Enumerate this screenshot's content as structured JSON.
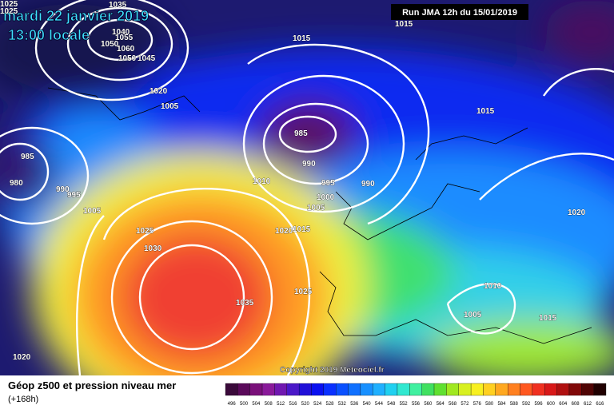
{
  "header": {
    "title": "mardi 22 janvier 2019",
    "subtitle": "13:00 locale",
    "run": "Run JMA 12h du 15/01/2019"
  },
  "copyright": "Copyright 2019 Meteociel.fr",
  "isobar_labels": [
    "1025",
    "1025",
    "1035",
    "1040",
    "1055",
    "1050",
    "1060",
    "1050",
    "1045",
    "1020",
    "1005",
    "1015",
    "1015",
    "985",
    "990",
    "995",
    "990",
    "1000",
    "1005",
    "1010",
    "1020",
    "1015",
    "1015",
    "1020",
    "985",
    "980",
    "990",
    "995",
    "1005",
    "1025",
    "1030",
    "1035",
    "1025",
    "1010",
    "1005",
    "1015",
    "1020"
  ],
  "legend": {
    "title": "Géop z500 et pression niveau mer",
    "lead": "(+168h)",
    "levels": [
      496,
      500,
      504,
      508,
      512,
      516,
      520,
      524,
      528,
      532,
      536,
      540,
      544,
      548,
      552,
      556,
      560,
      564,
      568,
      572,
      576,
      580,
      584,
      588,
      592,
      596,
      600,
      604,
      608,
      612,
      616
    ],
    "colors": [
      "#3a0a3a",
      "#5a0a5a",
      "#7a107a",
      "#8a1a9a",
      "#7018b0",
      "#4a18c8",
      "#2010d8",
      "#0a10f0",
      "#0a30ff",
      "#0a50ff",
      "#1070ff",
      "#1890ff",
      "#20b0ff",
      "#20d0f0",
      "#30e8d0",
      "#40f0a0",
      "#40e060",
      "#60e030",
      "#a0e820",
      "#d8f020",
      "#f8f020",
      "#ffd020",
      "#ffa820",
      "#ff8020",
      "#ff5820",
      "#f03020",
      "#d81818",
      "#b01010",
      "#800808",
      "#500404",
      "#200000"
    ]
  }
}
